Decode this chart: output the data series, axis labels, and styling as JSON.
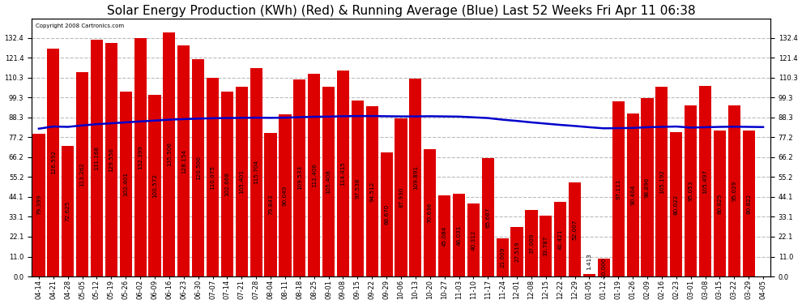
{
  "title": "Solar Energy Production (KWh) (Red) & Running Average (Blue) Last 52 Weeks Fri Apr 11 06:38",
  "copyright": "Copyright 2008 Cartronics.com",
  "bar_color": "#dd0000",
  "line_color": "#0000cc",
  "background_color": "#ffffff",
  "grid_color": "#bbbbbb",
  "ylim": [
    0.0,
    143.0
  ],
  "yticks": [
    0.0,
    11.0,
    22.1,
    33.1,
    44.1,
    55.2,
    66.2,
    77.2,
    88.3,
    99.3,
    110.3,
    121.4,
    132.4
  ],
  "categories": [
    "04-14",
    "04-21",
    "04-28",
    "05-05",
    "05-12",
    "05-19",
    "05-26",
    "06-02",
    "06-09",
    "06-16",
    "06-23",
    "06-30",
    "07-07",
    "07-14",
    "07-21",
    "07-28",
    "08-04",
    "08-11",
    "08-18",
    "08-25",
    "09-01",
    "09-08",
    "09-15",
    "09-22",
    "09-29",
    "10-06",
    "10-13",
    "10-20",
    "10-27",
    "11-03",
    "11-10",
    "11-17",
    "11-24",
    "12-01",
    "12-08",
    "12-15",
    "12-22",
    "12-29",
    "01-05",
    "01-12",
    "01-19",
    "01-26",
    "02-09",
    "02-16",
    "02-23",
    "03-01",
    "03-08",
    "03-15",
    "03-22",
    "03-29",
    "04-05"
  ],
  "values": [
    79.399,
    126.592,
    72.625,
    113.262,
    131.168,
    129.556,
    102.401,
    132.399,
    100.572,
    135.506,
    128.154,
    120.5,
    110.075,
    102.668,
    105.401,
    115.704,
    79.843,
    90.049,
    109.533,
    112.406,
    105.408,
    114.415,
    97.538,
    94.512,
    68.67,
    87.93,
    109.891,
    70.636,
    45.084,
    46.031,
    40.312,
    65.667,
    21.009,
    27.519,
    37.009,
    33.787,
    41.421,
    52.007,
    1.413,
    10.0,
    97.111,
    90.404,
    98.896,
    105.192,
    80.022,
    95.053,
    105.497,
    80.825,
    95.029,
    80.822,
    0.0
  ],
  "running_avg": [
    82.0,
    83.2,
    83.0,
    83.8,
    84.5,
    85.0,
    85.5,
    86.0,
    86.5,
    87.0,
    87.3,
    87.6,
    87.8,
    87.9,
    88.0,
    88.1,
    88.0,
    88.1,
    88.4,
    88.6,
    88.7,
    88.9,
    89.0,
    89.0,
    88.9,
    88.8,
    88.8,
    88.9,
    88.8,
    88.7,
    88.3,
    87.9,
    87.0,
    86.3,
    85.5,
    84.8,
    84.1,
    83.5,
    82.8,
    82.2,
    82.3,
    82.4,
    82.8,
    83.0,
    83.2,
    82.6,
    82.8,
    83.0,
    83.1,
    83.0,
    82.9
  ],
  "title_fontsize": 11,
  "tick_fontsize": 6.0,
  "bar_label_fontsize": 5.2
}
